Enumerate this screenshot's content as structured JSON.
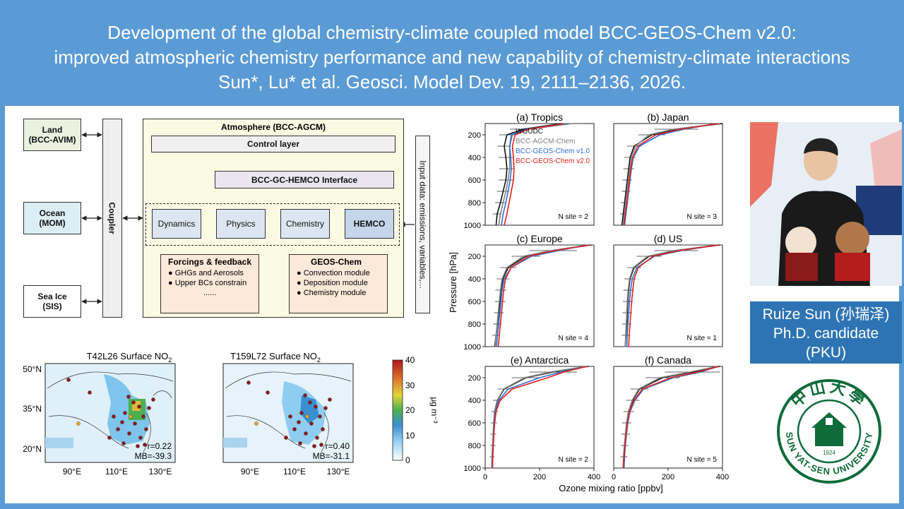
{
  "header": {
    "line1": "Development of the global chemistry-climate coupled model BCC-GEOS-Chem v2.0:",
    "line2": "improved atmospheric chemistry performance and new capability of chemistry-climate interactions",
    "line3": "Sun*, Lu* et al. Geosci. Model Dev. 19, 2111–2136, 2026."
  },
  "diagram": {
    "land": [
      "Land",
      "(BCC-AVIM)"
    ],
    "ocean": [
      "Ocean",
      "(MOM)"
    ],
    "seaice": [
      "Sea Ice",
      "(SIS)"
    ],
    "coupler": "Coupler",
    "atmosphere": "Atmosphere (BCC-AGCM)",
    "control": "Control layer",
    "interface": "BCC-GC-HEMCO Interface",
    "dynamics": "Dynamics",
    "physics": "Physics",
    "chemistry": "Chemistry",
    "hemco": "HEMCO",
    "forcings_title": "Forcings & feedback",
    "forcings_items": [
      "● GHGs and Aerosols",
      "● Upper BCs constrain",
      "......"
    ],
    "geoschem_title": "GEOS-Chem",
    "geoschem_items": [
      "● Convection module",
      "● Deposition module",
      "● Chemistry module"
    ],
    "input": "Input data: emissions, variables,..."
  },
  "maps": {
    "left_title": "T42L26 Surface NO",
    "right_title": "T159L72 Surface NO",
    "sub2": "2",
    "left_r": "r=0.22",
    "left_mb": "MB=-39.3",
    "right_r": "r=0.40",
    "right_mb": "MB=-31.1",
    "lat_labels": [
      "50°N",
      "35°N",
      "20°N"
    ],
    "lon_labels": [
      "90°E",
      "110°E",
      "130°E"
    ],
    "colorbar_ticks": [
      "40",
      "30",
      "20",
      "10",
      "0"
    ],
    "colorbar_label": "μg m⁻³"
  },
  "profiles": {
    "ylabel": "Pressure [hPa]",
    "xlabel": "Ozone mixing ratio [ppbv]",
    "legend": [
      {
        "name": "WOUDC",
        "color": "#111111"
      },
      {
        "name": "BCC-AGCM-Chem",
        "color": "#808080"
      },
      {
        "name": "BCC-GEOS-Chem v1.0",
        "color": "#2f6fd6"
      },
      {
        "name": "BCC-GEOS-Chem v2.0",
        "color": "#e0201c"
      }
    ]
  },
  "chart_data": [
    {
      "type": "line",
      "title": "(a) Tropics",
      "note": "N site = 2",
      "ylabel": "Pressure [hPa]",
      "yticks": [
        200,
        400,
        600,
        800,
        1000
      ],
      "ylim": [
        1000,
        100
      ],
      "xlim": [
        0,
        200
      ],
      "series": [
        {
          "name": "WOUDC",
          "pressure": [
            100,
            150,
            200,
            300,
            400,
            500,
            600,
            700,
            800,
            900,
            1000
          ],
          "ozone": [
            140,
            70,
            40,
            35,
            38,
            40,
            38,
            33,
            28,
            22,
            20
          ]
        },
        {
          "name": "BCC-AGCM-Chem",
          "pressure": [
            100,
            150,
            200,
            300,
            400,
            500,
            600,
            700,
            800,
            900,
            1000
          ],
          "ozone": [
            160,
            80,
            50,
            45,
            45,
            45,
            42,
            38,
            33,
            28,
            25
          ]
        },
        {
          "name": "BCC-GEOS-Chem v1.0",
          "pressure": [
            100,
            150,
            200,
            300,
            400,
            500,
            600,
            700,
            800,
            900,
            1000
          ],
          "ozone": [
            150,
            75,
            48,
            45,
            47,
            48,
            46,
            42,
            38,
            33,
            30
          ]
        },
        {
          "name": "BCC-GEOS-Chem v2.0",
          "pressure": [
            100,
            150,
            200,
            300,
            400,
            500,
            600,
            700,
            800,
            900,
            1000
          ],
          "ozone": [
            145,
            80,
            55,
            50,
            52,
            53,
            52,
            48,
            44,
            40,
            35
          ]
        }
      ]
    },
    {
      "type": "line",
      "title": "(b) Japan",
      "note": "N site = 3",
      "ylim": [
        1000,
        100
      ],
      "xlim": [
        0,
        400
      ],
      "series": [
        {
          "name": "WOUDC",
          "pressure": [
            100,
            150,
            200,
            300,
            400,
            500,
            600,
            700,
            800,
            900,
            1000
          ],
          "ozone": [
            400,
            230,
            140,
            75,
            60,
            55,
            50,
            45,
            40,
            35,
            30
          ]
        },
        {
          "name": "BCC-AGCM-Chem",
          "pressure": [
            100,
            150,
            200,
            300,
            400,
            500,
            600,
            700,
            800,
            900,
            1000
          ],
          "ozone": [
            390,
            220,
            130,
            80,
            65,
            60,
            55,
            50,
            45,
            40,
            35
          ]
        },
        {
          "name": "BCC-GEOS-Chem v1.0",
          "pressure": [
            100,
            150,
            200,
            300,
            400,
            500,
            600,
            700,
            800,
            900,
            1000
          ],
          "ozone": [
            380,
            260,
            170,
            95,
            72,
            65,
            60,
            55,
            50,
            45,
            40
          ]
        },
        {
          "name": "BCC-GEOS-Chem v2.0",
          "pressure": [
            100,
            150,
            200,
            300,
            400,
            500,
            600,
            700,
            800,
            900,
            1000
          ],
          "ozone": [
            385,
            245,
            155,
            88,
            70,
            63,
            58,
            53,
            48,
            42,
            38
          ]
        }
      ]
    },
    {
      "type": "line",
      "title": "(c) Europe",
      "note": "N site = 4",
      "ylim": [
        1000,
        100
      ],
      "xlim": [
        0,
        400
      ],
      "series": [
        {
          "name": "WOUDC",
          "pressure": [
            100,
            150,
            200,
            300,
            400,
            500,
            600,
            700,
            800,
            900,
            1000
          ],
          "ozone": [
            390,
            250,
            150,
            85,
            65,
            58,
            55,
            50,
            45,
            40,
            35
          ]
        },
        {
          "name": "BCC-AGCM-Chem",
          "pressure": [
            100,
            150,
            200,
            300,
            400,
            500,
            600,
            700,
            800,
            900,
            1000
          ],
          "ozone": [
            380,
            240,
            140,
            80,
            62,
            56,
            52,
            48,
            44,
            40,
            37
          ]
        },
        {
          "name": "BCC-GEOS-Chem v1.0",
          "pressure": [
            100,
            150,
            200,
            300,
            400,
            500,
            600,
            700,
            800,
            900,
            1000
          ],
          "ozone": [
            375,
            270,
            170,
            95,
            70,
            62,
            58,
            54,
            50,
            45,
            42
          ]
        },
        {
          "name": "BCC-GEOS-Chem v2.0",
          "pressure": [
            100,
            150,
            200,
            300,
            400,
            500,
            600,
            700,
            800,
            900,
            1000
          ],
          "ozone": [
            385,
            255,
            160,
            95,
            75,
            68,
            64,
            60,
            56,
            52,
            48
          ]
        }
      ]
    },
    {
      "type": "line",
      "title": "(d) US",
      "note": "N site = 1",
      "ylim": [
        1000,
        100
      ],
      "xlim": [
        0,
        400
      ],
      "series": [
        {
          "name": "WOUDC",
          "pressure": [
            100,
            150,
            200,
            300,
            400,
            500,
            600,
            700,
            800,
            900,
            1000
          ],
          "ozone": [
            390,
            230,
            130,
            75,
            60,
            55,
            52,
            50,
            48,
            45,
            42
          ]
        },
        {
          "name": "BCC-AGCM-Chem",
          "pressure": [
            100,
            150,
            200,
            300,
            400,
            500,
            600,
            700,
            800,
            900,
            1000
          ],
          "ozone": [
            380,
            220,
            125,
            72,
            58,
            53,
            50,
            48,
            46,
            44,
            42
          ]
        },
        {
          "name": "BCC-GEOS-Chem v1.0",
          "pressure": [
            100,
            150,
            200,
            300,
            400,
            500,
            600,
            700,
            800,
            900,
            1000
          ],
          "ozone": [
            385,
            250,
            150,
            85,
            68,
            62,
            58,
            55,
            52,
            50,
            48
          ]
        },
        {
          "name": "BCC-GEOS-Chem v2.0",
          "pressure": [
            100,
            150,
            200,
            300,
            400,
            500,
            600,
            700,
            800,
            900,
            1000
          ],
          "ozone": [
            385,
            240,
            145,
            90,
            75,
            70,
            66,
            63,
            60,
            57,
            55
          ]
        }
      ]
    },
    {
      "type": "line",
      "title": "(e) Antarctica",
      "note": "N site = 2",
      "ylim": [
        1000,
        100
      ],
      "xlim": [
        0,
        400
      ],
      "xticks": [
        0,
        200,
        400
      ],
      "series": [
        {
          "name": "WOUDC",
          "pressure": [
            100,
            150,
            200,
            300,
            400,
            500,
            600,
            700,
            800,
            900,
            1000
          ],
          "ozone": [
            380,
            250,
            150,
            70,
            45,
            35,
            32,
            30,
            28,
            26,
            25
          ]
        },
        {
          "name": "BCC-AGCM-Chem",
          "pressure": [
            100,
            150,
            200,
            300,
            400,
            500,
            600,
            700,
            800,
            900,
            1000
          ],
          "ozone": [
            370,
            240,
            145,
            68,
            44,
            34,
            31,
            29,
            27,
            25,
            24
          ]
        },
        {
          "name": "BCC-GEOS-Chem v1.0",
          "pressure": [
            100,
            150,
            200,
            300,
            400,
            500,
            600,
            700,
            800,
            900,
            1000
          ],
          "ozone": [
            375,
            280,
            200,
            85,
            50,
            38,
            33,
            31,
            29,
            27,
            26
          ]
        },
        {
          "name": "BCC-GEOS-Chem v2.0",
          "pressure": [
            100,
            150,
            200,
            300,
            400,
            500,
            600,
            700,
            800,
            900,
            1000
          ],
          "ozone": [
            375,
            290,
            230,
            100,
            55,
            40,
            35,
            32,
            30,
            28,
            27
          ]
        }
      ]
    },
    {
      "type": "line",
      "title": "(f) Canada",
      "note": "N site = 5",
      "ylim": [
        1000,
        100
      ],
      "xlim": [
        0,
        400
      ],
      "xticks": [
        0,
        200,
        400
      ],
      "series": [
        {
          "name": "WOUDC",
          "pressure": [
            100,
            150,
            200,
            300,
            400,
            500,
            600,
            700,
            800,
            900,
            1000
          ],
          "ozone": [
            390,
            290,
            180,
            95,
            70,
            55,
            48,
            44,
            40,
            37,
            35
          ]
        },
        {
          "name": "BCC-AGCM-Chem",
          "pressure": [
            100,
            150,
            200,
            300,
            400,
            500,
            600,
            700,
            800,
            900,
            1000
          ],
          "ozone": [
            380,
            280,
            170,
            92,
            68,
            54,
            47,
            43,
            39,
            36,
            34
          ]
        },
        {
          "name": "BCC-GEOS-Chem v1.0",
          "pressure": [
            100,
            150,
            200,
            300,
            400,
            500,
            600,
            700,
            800,
            900,
            1000
          ],
          "ozone": [
            385,
            320,
            220,
            110,
            78,
            60,
            52,
            47,
            43,
            40,
            38
          ]
        },
        {
          "name": "BCC-GEOS-Chem v2.0",
          "pressure": [
            100,
            150,
            200,
            300,
            400,
            500,
            600,
            700,
            800,
            900,
            1000
          ],
          "ozone": [
            385,
            310,
            210,
            105,
            75,
            58,
            50,
            45,
            41,
            38,
            36
          ]
        }
      ]
    }
  ],
  "author": {
    "name": "Ruize Sun (孙瑞泽)",
    "title": "Ph.D. candidate",
    "affil": "(PKU)"
  },
  "logo": {
    "top": "中山大學",
    "ring": "SUN YAT-SEN UNIVERSITY",
    "year": "1924"
  }
}
